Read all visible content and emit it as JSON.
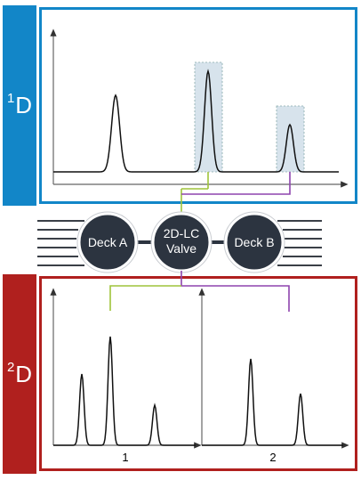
{
  "bands": {
    "first": {
      "sup": "1",
      "letter": "D",
      "color": "#1286c8"
    },
    "second": {
      "sup": "2",
      "letter": "D",
      "color": "#b0201e"
    }
  },
  "nodes": {
    "deck_a": {
      "label": "Deck A"
    },
    "valve": {
      "line1": "2D-LC",
      "line2": "Valve"
    },
    "deck_b": {
      "label": "Deck B"
    }
  },
  "second_dimension": {
    "run_1_label": "1",
    "run_2_label": "2"
  },
  "colors": {
    "node_fill": "#2c3440",
    "transfer_1": "#9fc43a",
    "transfer_2": "#8e44ad",
    "heart_cut_region": "#d7e3ec"
  }
}
